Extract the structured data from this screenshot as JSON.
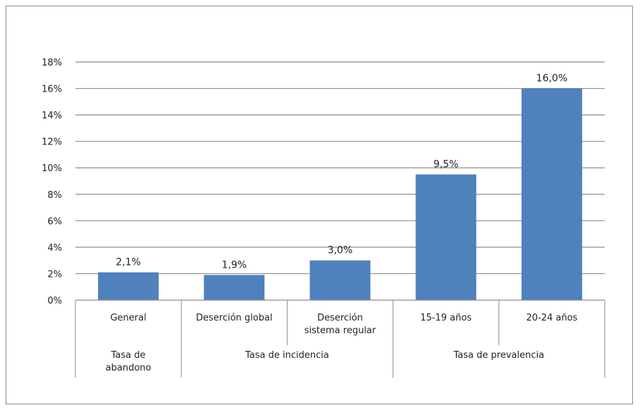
{
  "chart_data": {
    "type": "bar",
    "categories": [
      "General",
      "Deserción global",
      "Deserción sistema regular",
      "15-19 años",
      "20-24 años"
    ],
    "category_lines": [
      [
        "General"
      ],
      [
        "Deserción global"
      ],
      [
        "Deserción",
        "sistema regular"
      ],
      [
        "15-19 años"
      ],
      [
        "20-24 años"
      ]
    ],
    "groups": [
      {
        "lines": [
          "Tasa de",
          "abandono"
        ],
        "categories": [
          "General"
        ]
      },
      {
        "lines": [
          "Tasa de incidencia"
        ],
        "categories": [
          "Deserción global",
          "Deserción sistema regular"
        ]
      },
      {
        "lines": [
          "Tasa de prevalencia"
        ],
        "categories": [
          "15-19 años",
          "20-24 años"
        ]
      }
    ],
    "values": [
      2.1,
      1.9,
      3.0,
      9.5,
      16.0
    ],
    "data_labels": [
      "2,1%",
      "1,9%",
      "3,0%",
      "9,5%",
      "16,0%"
    ],
    "y_ticks": [
      "0%",
      "2%",
      "4%",
      "6%",
      "8%",
      "10%",
      "12%",
      "14%",
      "16%",
      "18%"
    ],
    "ylim": [
      0,
      18
    ],
    "y_step": 2,
    "grid": true,
    "bar_color": "#4f81bd",
    "title": "",
    "xlabel": "",
    "ylabel": ""
  }
}
